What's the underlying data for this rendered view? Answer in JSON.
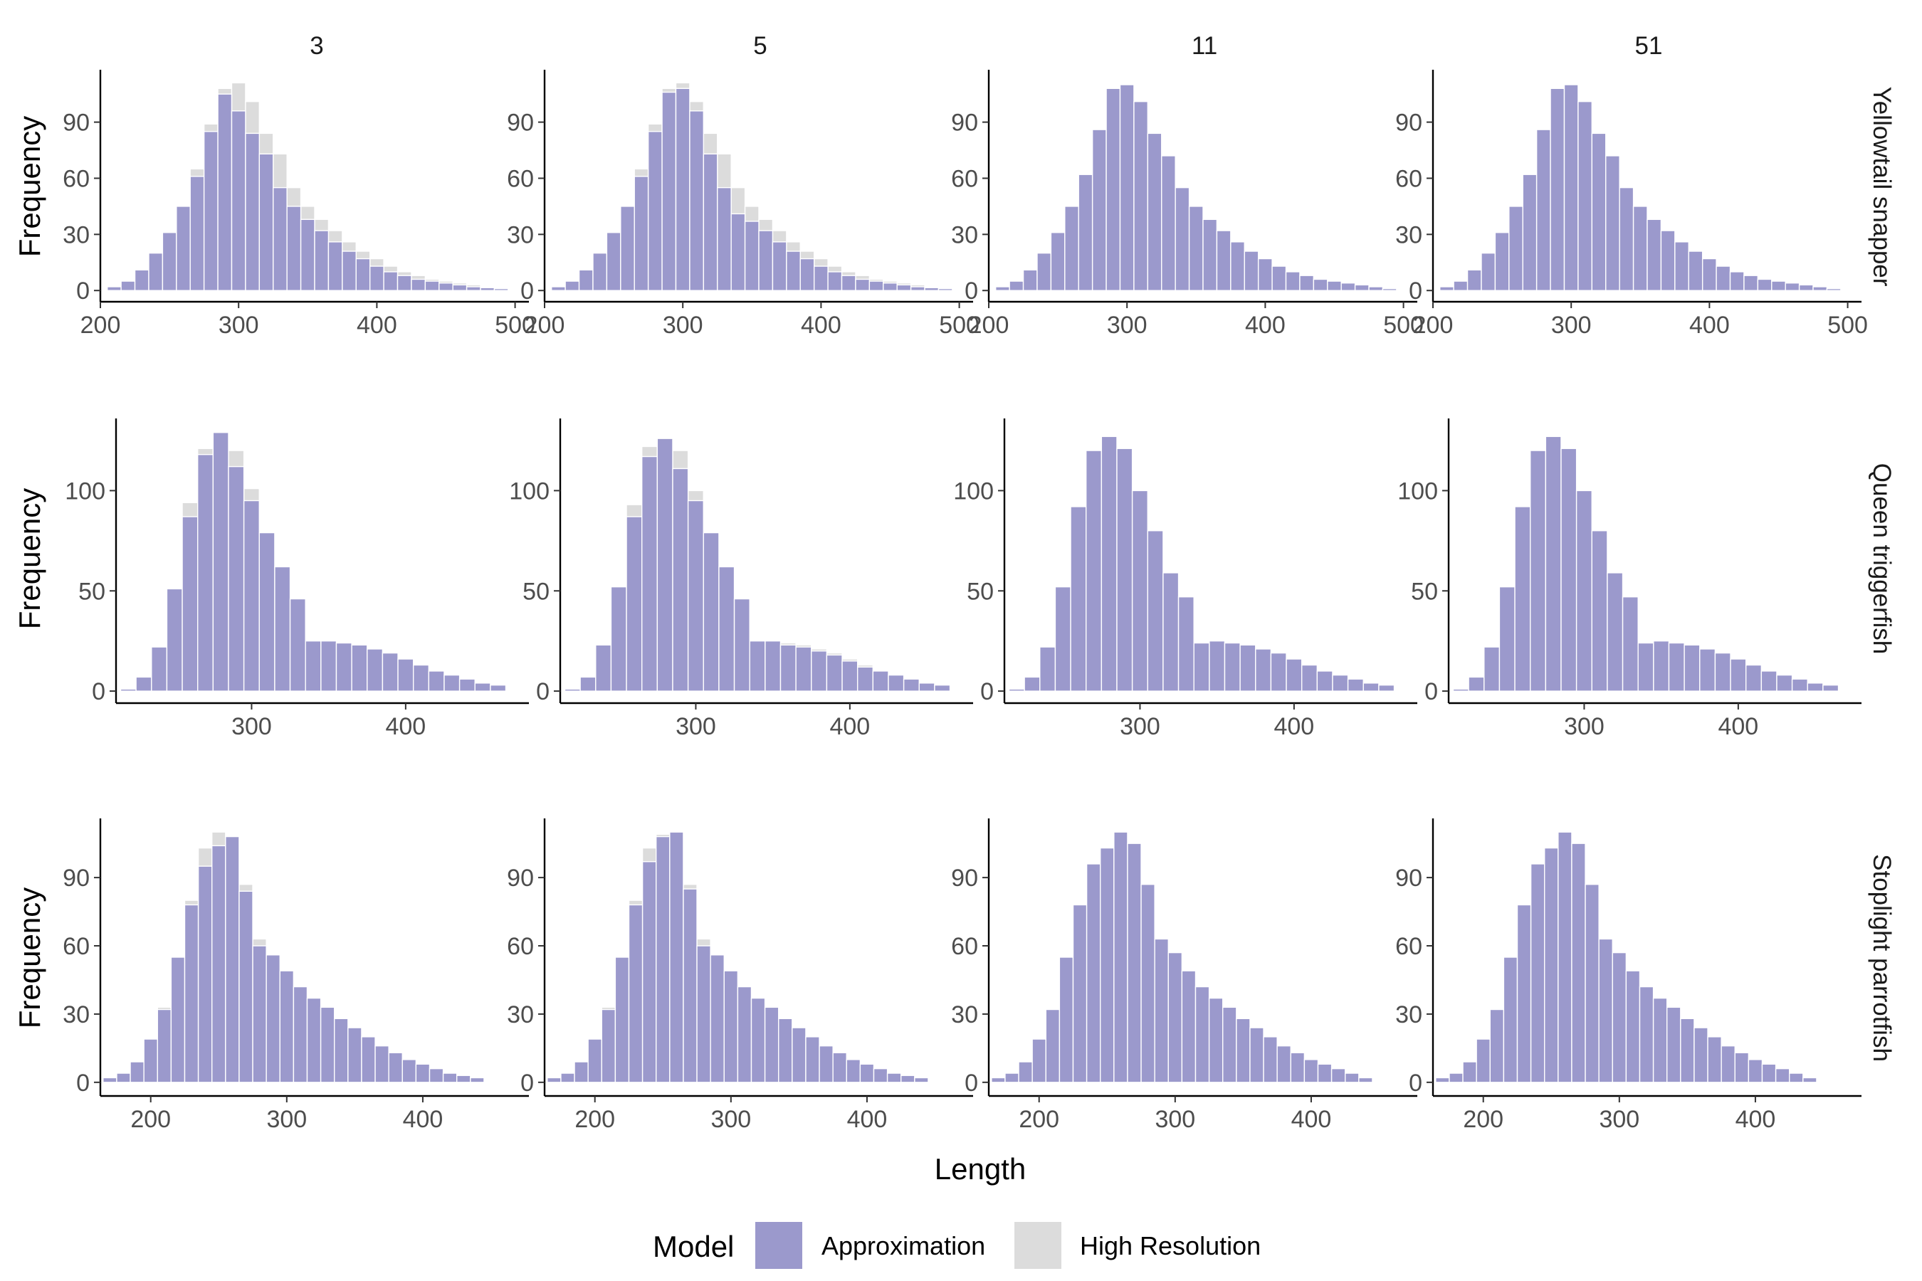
{
  "chart_data": {
    "type": "bar",
    "subtype": "faceted overlaid histogram",
    "xlabel": "Length",
    "ylabel": "Frequency",
    "columns": [
      "3",
      "5",
      "11",
      "51"
    ],
    "legend": {
      "title": "Model",
      "position": "bottom",
      "items": [
        {
          "label": "Approximation",
          "color": "#9b99cc"
        },
        {
          "label": "High Resolution",
          "color": "#dcdcdc"
        }
      ]
    },
    "bin_width": 10,
    "grid": false,
    "rows": [
      {
        "label": "Yellowtail snapper",
        "xlim": [
          200,
          510
        ],
        "ylim": [
          -6,
          118
        ],
        "x_ticks": [
          200,
          300,
          400,
          500
        ],
        "y_ticks": [
          0,
          30,
          60,
          90
        ],
        "bin_start": 210,
        "approx_by_column": [
          [
            2,
            5,
            11,
            20,
            31,
            45,
            61,
            85,
            105,
            96,
            84,
            73,
            55,
            45,
            38,
            32,
            26,
            21,
            17,
            13,
            10,
            8,
            6,
            5,
            4,
            3,
            2,
            1.5,
            1
          ],
          [
            2,
            5,
            11,
            20,
            31,
            45,
            61,
            85,
            106,
            108,
            96,
            73,
            55,
            41,
            37,
            32,
            26,
            21,
            17,
            13,
            10,
            8,
            6,
            5,
            4,
            3,
            2,
            1.5,
            1
          ],
          [
            2,
            5,
            11,
            20,
            31,
            45,
            62,
            86,
            108,
            110,
            101,
            84,
            72,
            55,
            45,
            38,
            32,
            26,
            21,
            17,
            13,
            10,
            8,
            6,
            5,
            4,
            3,
            2,
            1
          ],
          [
            2,
            5,
            11,
            20,
            31,
            45,
            62,
            86,
            108,
            110,
            101,
            84,
            72,
            55,
            45,
            38,
            32,
            26,
            21,
            17,
            13,
            10,
            8,
            6,
            5,
            4,
            3,
            2,
            1
          ]
        ],
        "high_res_by_column": [
          [
            2,
            5,
            11,
            20,
            31,
            45,
            65,
            89,
            108,
            111,
            101,
            84,
            73,
            55,
            45,
            38,
            32,
            26,
            21,
            17,
            13,
            10,
            8,
            6,
            5,
            4,
            3,
            2,
            1
          ],
          [
            2,
            5,
            11,
            20,
            31,
            45,
            65,
            89,
            108,
            111,
            101,
            84,
            73,
            55,
            45,
            38,
            32,
            26,
            21,
            17,
            13,
            10,
            8,
            6,
            5,
            4,
            3,
            2,
            1
          ],
          [
            2,
            5,
            11,
            20,
            31,
            45,
            62,
            86,
            108,
            110,
            101,
            84,
            72,
            55,
            45,
            38,
            32,
            26,
            21,
            17,
            13,
            10,
            8,
            6,
            5,
            4,
            3,
            2,
            1
          ],
          [
            2,
            5,
            11,
            20,
            31,
            45,
            62,
            86,
            108,
            110,
            101,
            84,
            72,
            55,
            45,
            38,
            32,
            26,
            21,
            17,
            13,
            10,
            8,
            6,
            5,
            4,
            3,
            2,
            1
          ]
        ]
      },
      {
        "label": "Queen triggerfish",
        "xlim": [
          212,
          480
        ],
        "ylim": [
          -6,
          136
        ],
        "x_ticks": [
          300,
          400
        ],
        "y_ticks": [
          0,
          50,
          100
        ],
        "bin_start": 220,
        "approx_by_column": [
          [
            1,
            7,
            22,
            51,
            87,
            118,
            129,
            112,
            95,
            79,
            62,
            46,
            25,
            25,
            24,
            23,
            21,
            19,
            16,
            13,
            10,
            8,
            6,
            4,
            3
          ],
          [
            1,
            7,
            23,
            52,
            87,
            117,
            126,
            111,
            95,
            79,
            62,
            46,
            25,
            25,
            23,
            22,
            20,
            18,
            15,
            12,
            10,
            8,
            6,
            4,
            3
          ],
          [
            1,
            7,
            22,
            52,
            92,
            120,
            127,
            121,
            100,
            80,
            59,
            47,
            24,
            25,
            24,
            23,
            21,
            19,
            16,
            13,
            10,
            8,
            6,
            4,
            3
          ],
          [
            1,
            7,
            22,
            52,
            92,
            120,
            127,
            121,
            100,
            80,
            59,
            47,
            24,
            25,
            24,
            23,
            21,
            19,
            16,
            13,
            10,
            8,
            6,
            4,
            3
          ]
        ],
        "high_res_by_column": [
          [
            1,
            7,
            22,
            51,
            94,
            121,
            129,
            120,
            101,
            79,
            62,
            46,
            25,
            25,
            24,
            23,
            21,
            19,
            16,
            13,
            10,
            8,
            6,
            4,
            3
          ],
          [
            1,
            7,
            23,
            52,
            93,
            122,
            126,
            120,
            100,
            79,
            62,
            46,
            25,
            25,
            24,
            23,
            21,
            19,
            16,
            13,
            10,
            8,
            6,
            4,
            3
          ],
          [
            1,
            7,
            22,
            52,
            92,
            120,
            127,
            121,
            100,
            80,
            59,
            47,
            24,
            25,
            24,
            23,
            21,
            19,
            16,
            13,
            10,
            8,
            6,
            4,
            3
          ],
          [
            1,
            7,
            22,
            52,
            92,
            120,
            127,
            121,
            100,
            80,
            59,
            47,
            24,
            25,
            24,
            23,
            21,
            19,
            16,
            13,
            10,
            8,
            6,
            4,
            3
          ]
        ]
      },
      {
        "label": "Stoplight parrotfish",
        "xlim": [
          163,
          478
        ],
        "ylim": [
          -6,
          116
        ],
        "x_ticks": [
          200,
          300,
          400
        ],
        "y_ticks": [
          0,
          30,
          60,
          90
        ],
        "bin_start": 170,
        "approx_by_column": [
          [
            2,
            4,
            9,
            19,
            32,
            55,
            78,
            95,
            104,
            108,
            84,
            60,
            56,
            49,
            42,
            37,
            33,
            28,
            24,
            20,
            16,
            13,
            10,
            8,
            6,
            4,
            3,
            2
          ],
          [
            2,
            4,
            9,
            19,
            32,
            55,
            78,
            97,
            108,
            110,
            85,
            60,
            56,
            49,
            42,
            37,
            33,
            28,
            24,
            20,
            16,
            13,
            10,
            8,
            6,
            4,
            3,
            2
          ],
          [
            2,
            4,
            9,
            19,
            32,
            55,
            78,
            96,
            103,
            110,
            105,
            87,
            63,
            57,
            49,
            42,
            37,
            33,
            28,
            24,
            20,
            16,
            13,
            10,
            8,
            6,
            4,
            2
          ],
          [
            2,
            4,
            9,
            19,
            32,
            55,
            78,
            96,
            103,
            110,
            105,
            87,
            63,
            57,
            49,
            42,
            37,
            33,
            28,
            24,
            20,
            16,
            13,
            10,
            8,
            6,
            4,
            2
          ]
        ],
        "high_res_by_column": [
          [
            2,
            4,
            9,
            19,
            33,
            55,
            80,
            103,
            110,
            104,
            87,
            63,
            56,
            49,
            42,
            37,
            33,
            28,
            24,
            20,
            16,
            13,
            10,
            8,
            6,
            4,
            3,
            2
          ],
          [
            2,
            4,
            9,
            19,
            33,
            55,
            80,
            103,
            109,
            104,
            87,
            63,
            56,
            49,
            42,
            37,
            33,
            28,
            24,
            20,
            16,
            13,
            10,
            8,
            6,
            4,
            3,
            2
          ],
          [
            2,
            4,
            9,
            19,
            32,
            55,
            78,
            96,
            103,
            110,
            105,
            87,
            63,
            57,
            49,
            42,
            37,
            33,
            28,
            24,
            20,
            16,
            13,
            10,
            8,
            6,
            4,
            2
          ],
          [
            2,
            4,
            9,
            19,
            32,
            55,
            78,
            96,
            103,
            110,
            105,
            87,
            63,
            57,
            49,
            42,
            37,
            33,
            28,
            24,
            20,
            16,
            13,
            10,
            8,
            6,
            4,
            2
          ]
        ]
      }
    ]
  }
}
